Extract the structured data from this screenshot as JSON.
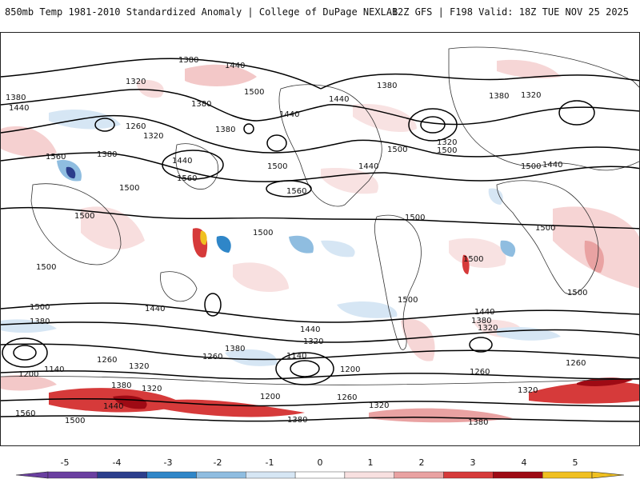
{
  "header": {
    "title_left": "850mb Temp 1981-2010 Standardized Anomaly | College of DuPage NEXLAB",
    "title_right": "12Z GFS | F198 Valid: 18Z TUE NOV 25 2025"
  },
  "colorbar": {
    "ticks": [
      "-5",
      "-4",
      "-3",
      "-2",
      "-1",
      "0",
      "1",
      "2",
      "3",
      "4",
      "5"
    ],
    "colors": [
      "#6a3fa0",
      "#2b3e8c",
      "#2f86c8",
      "#8fbde0",
      "#d6e6f4",
      "#ffffff",
      "#f8e0e0",
      "#e9a2a2",
      "#d63a3a",
      "#9e0a14",
      "#f0c020"
    ]
  },
  "map": {
    "contour_labels": [
      "1380",
      "1440",
      "1320",
      "1380",
      "1500",
      "1440",
      "1380",
      "1380",
      "1440",
      "1320",
      "1380",
      "1440",
      "1260",
      "1320",
      "1380",
      "1500",
      "1560",
      "1440",
      "1500",
      "1500",
      "1500",
      "1320",
      "1560",
      "1440",
      "1500",
      "1560",
      "1380",
      "1440",
      "1500",
      "1500",
      "1500",
      "1500",
      "1500",
      "1500",
      "1500",
      "1500",
      "1440",
      "1500",
      "1440",
      "1380",
      "1440",
      "1320",
      "1380",
      "1320",
      "1260",
      "1260",
      "1320",
      "1380",
      "1260",
      "1200",
      "1140",
      "1140",
      "1200",
      "1260",
      "1320",
      "1200",
      "1260",
      "1320",
      "1380",
      "1440",
      "1560",
      "1500",
      "1380",
      "1380",
      "1320"
    ]
  }
}
